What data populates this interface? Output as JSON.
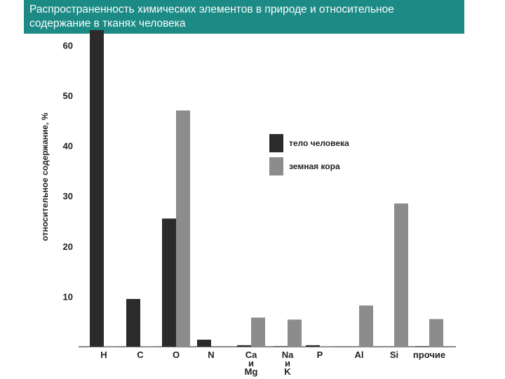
{
  "title": {
    "line1": "Распространенность химических элементов в природе и относительное",
    "line2": "содержание в тканях человека"
  },
  "chart_data": {
    "type": "bar",
    "ylabel": "относительное содержание, %",
    "ylim": [
      0,
      62
    ],
    "yticks": [
      10,
      20,
      30,
      40,
      50,
      60
    ],
    "categories": [
      [
        "H"
      ],
      [
        "C"
      ],
      [
        "O"
      ],
      [
        "N"
      ],
      [
        "Ca",
        "и",
        "Mg"
      ],
      [
        "Na",
        "и",
        "K"
      ],
      [
        "P"
      ],
      [
        "Al"
      ],
      [
        "Si"
      ],
      [
        "прочие"
      ]
    ],
    "series": [
      {
        "name": "тело человека",
        "color": "#2b2b2b",
        "values": [
          63,
          9.5,
          25.5,
          1.4,
          0.3,
          0.1,
          0.3,
          0,
          0,
          0.1
        ]
      },
      {
        "name": "земная кора",
        "color": "#8c8c8c",
        "values": [
          0.1,
          0.1,
          47,
          0,
          5.8,
          5.4,
          0.1,
          8.2,
          28.5,
          5.5
        ]
      }
    ],
    "legend_position": "top-right",
    "grid": false
  }
}
